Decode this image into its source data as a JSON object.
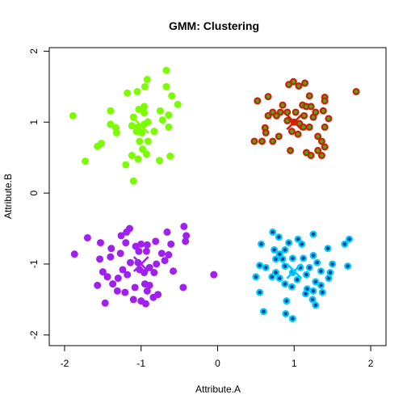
{
  "chart_data": {
    "type": "scatter",
    "title": "GMM: Clustering",
    "xlabel": "Attribute.A",
    "ylabel": "Attribute.B",
    "xlim": [
      -2.2,
      2.2
    ],
    "ylim": [
      -2.15,
      2.05
    ],
    "xticks": [
      "-2",
      "-1",
      "0",
      "1",
      "2"
    ],
    "xtick_values": [
      -2,
      -1,
      0,
      1,
      2
    ],
    "yticks": [
      "-2",
      "-1",
      "0",
      "1",
      "2"
    ],
    "ytick_values": [
      -2,
      -1,
      0,
      1,
      2
    ],
    "grid": false,
    "legend": "none",
    "series": [
      {
        "color": "#7CFC00",
        "inner_color": "#7CFC00",
        "center": [
          -1.0,
          0.95
        ],
        "points": [
          [
            -0.67,
            1.73
          ],
          [
            -0.92,
            1.6
          ],
          [
            -1.18,
            1.41
          ],
          [
            -0.67,
            1.5
          ],
          [
            -0.95,
            1.5
          ],
          [
            -1.05,
            1.43
          ],
          [
            -0.6,
            1.37
          ],
          [
            -0.52,
            1.25
          ],
          [
            -1.03,
            1.18
          ],
          [
            -0.96,
            1.22
          ],
          [
            -0.96,
            1.13
          ],
          [
            -1.1,
            1.07
          ],
          [
            -1.4,
            1.16
          ],
          [
            -0.75,
            1.16
          ],
          [
            -0.64,
            1.1
          ],
          [
            -0.72,
            1.03
          ],
          [
            -1.89,
            1.09
          ],
          [
            -1.33,
            0.92
          ],
          [
            -1.4,
            0.97
          ],
          [
            -1.32,
            0.85
          ],
          [
            -1.12,
            0.95
          ],
          [
            -1.04,
            0.93
          ],
          [
            -0.96,
            0.97
          ],
          [
            -0.91,
            1.0
          ],
          [
            -0.64,
            0.93
          ],
          [
            -0.83,
            0.87
          ],
          [
            -1.06,
            0.87
          ],
          [
            -0.99,
            0.85
          ],
          [
            -1.52,
            0.7
          ],
          [
            -1.57,
            0.66
          ],
          [
            -1.02,
            0.73
          ],
          [
            -0.91,
            0.73
          ],
          [
            -0.98,
            0.62
          ],
          [
            -0.93,
            0.55
          ],
          [
            -1.12,
            0.53
          ],
          [
            -1.04,
            0.48
          ],
          [
            -1.73,
            0.45
          ],
          [
            -0.76,
            0.46
          ],
          [
            -1.2,
            0.4
          ],
          [
            -0.62,
            0.52
          ],
          [
            -1.1,
            0.17
          ]
        ]
      },
      {
        "color": "#CC2200",
        "inner_color": "#44AA22",
        "center": [
          1.0,
          1.0
        ],
        "points": [
          [
            0.99,
            1.57
          ],
          [
            0.93,
            1.53
          ],
          [
            1.06,
            1.51
          ],
          [
            1.14,
            1.55
          ],
          [
            1.81,
            1.43
          ],
          [
            0.52,
            1.3
          ],
          [
            0.66,
            1.36
          ],
          [
            1.2,
            1.37
          ],
          [
            1.4,
            1.35
          ],
          [
            1.4,
            1.3
          ],
          [
            0.85,
            1.24
          ],
          [
            1.11,
            1.24
          ],
          [
            1.16,
            1.22
          ],
          [
            1.22,
            1.22
          ],
          [
            0.72,
            1.14
          ],
          [
            0.82,
            1.14
          ],
          [
            0.91,
            1.14
          ],
          [
            1.02,
            1.14
          ],
          [
            1.28,
            1.14
          ],
          [
            1.38,
            1.16
          ],
          [
            0.66,
            1.09
          ],
          [
            0.77,
            1.09
          ],
          [
            1.13,
            1.09
          ],
          [
            1.25,
            1.07
          ],
          [
            0.91,
            1.02
          ],
          [
            1.0,
            1.0
          ],
          [
            1.07,
            0.98
          ],
          [
            1.45,
            1.05
          ],
          [
            0.62,
            0.92
          ],
          [
            1.12,
            0.93
          ],
          [
            1.2,
            0.93
          ],
          [
            1.4,
            0.93
          ],
          [
            0.63,
            0.85
          ],
          [
            0.97,
            0.87
          ],
          [
            1.05,
            0.83
          ],
          [
            0.8,
            0.8
          ],
          [
            1.31,
            0.8
          ],
          [
            0.48,
            0.73
          ],
          [
            0.58,
            0.73
          ],
          [
            0.72,
            0.73
          ],
          [
            1.36,
            0.73
          ],
          [
            1.4,
            0.65
          ],
          [
            0.95,
            0.6
          ],
          [
            1.16,
            0.57
          ],
          [
            1.31,
            0.6
          ],
          [
            1.22,
            0.53
          ],
          [
            1.36,
            0.53
          ]
        ]
      },
      {
        "color": "#A020F0",
        "inner_color": "#A020F0",
        "center": [
          -1.0,
          -1.0
        ],
        "points": [
          [
            -0.44,
            -0.47
          ],
          [
            -1.15,
            -0.5
          ],
          [
            -1.19,
            -0.55
          ],
          [
            -0.66,
            -0.55
          ],
          [
            -1.7,
            -0.63
          ],
          [
            -1.26,
            -0.6
          ],
          [
            -0.41,
            -0.6
          ],
          [
            -1.53,
            -0.7
          ],
          [
            -1.2,
            -0.7
          ],
          [
            -0.42,
            -0.68
          ],
          [
            -1.39,
            -0.78
          ],
          [
            -0.81,
            -0.68
          ],
          [
            -1.0,
            -0.72
          ],
          [
            -0.92,
            -0.73
          ],
          [
            -1.07,
            -0.75
          ],
          [
            -0.61,
            -0.72
          ],
          [
            -1.87,
            -0.86
          ],
          [
            -1.4,
            -0.9
          ],
          [
            -1.27,
            -0.85
          ],
          [
            -1.03,
            -0.82
          ],
          [
            -0.93,
            -0.82
          ],
          [
            -0.73,
            -0.85
          ],
          [
            -0.64,
            -0.87
          ],
          [
            -1.54,
            -0.93
          ],
          [
            -1.14,
            -0.98
          ],
          [
            -1.04,
            -0.98
          ],
          [
            -0.69,
            -0.95
          ],
          [
            -0.8,
            -1.0
          ],
          [
            -1.24,
            -1.08
          ],
          [
            -1.02,
            -1.08
          ],
          [
            -0.89,
            -1.05
          ],
          [
            -1.5,
            -1.11
          ],
          [
            -1.18,
            -1.15
          ],
          [
            -0.96,
            -1.12
          ],
          [
            -0.83,
            -1.12
          ],
          [
            -0.58,
            -1.1
          ],
          [
            -1.44,
            -1.18
          ],
          [
            -1.3,
            -1.2
          ],
          [
            -1.57,
            -1.3
          ],
          [
            -1.37,
            -1.28
          ],
          [
            -0.95,
            -1.28
          ],
          [
            -0.89,
            -1.3
          ],
          [
            -1.08,
            -1.33
          ],
          [
            -0.45,
            -1.33
          ],
          [
            -1.31,
            -1.38
          ],
          [
            -1.21,
            -1.4
          ],
          [
            -0.92,
            -1.38
          ],
          [
            -0.84,
            -1.47
          ],
          [
            -1.0,
            -1.52
          ],
          [
            -1.47,
            -1.55
          ],
          [
            -0.94,
            -1.56
          ],
          [
            -1.1,
            -1.5
          ],
          [
            -0.78,
            -1.43
          ],
          [
            -0.05,
            -1.15
          ]
        ]
      },
      {
        "color": "#00CCFF",
        "inner_color": "#1E3C8C",
        "center": [
          1.0,
          -1.1
        ],
        "points": [
          [
            0.72,
            -0.55
          ],
          [
            0.8,
            -0.62
          ],
          [
            1.72,
            -0.65
          ],
          [
            1.66,
            -0.72
          ],
          [
            1.25,
            -0.58
          ],
          [
            1.05,
            -0.65
          ],
          [
            0.93,
            -0.7
          ],
          [
            1.1,
            -0.72
          ],
          [
            0.57,
            -0.72
          ],
          [
            0.74,
            -0.8
          ],
          [
            0.88,
            -0.8
          ],
          [
            1.44,
            -0.78
          ],
          [
            0.81,
            -0.86
          ],
          [
            0.76,
            -0.93
          ],
          [
            0.85,
            -0.93
          ],
          [
            0.98,
            -0.92
          ],
          [
            1.12,
            -0.92
          ],
          [
            1.25,
            -0.88
          ],
          [
            1.3,
            -0.98
          ],
          [
            1.5,
            -1.0
          ],
          [
            0.55,
            -1.02
          ],
          [
            0.88,
            -1.03
          ],
          [
            1.08,
            -1.05
          ],
          [
            1.2,
            -1.05
          ],
          [
            1.35,
            -1.1
          ],
          [
            1.7,
            -1.03
          ],
          [
            0.63,
            -1.05
          ],
          [
            0.76,
            -1.12
          ],
          [
            0.98,
            -1.12
          ],
          [
            1.16,
            -1.15
          ],
          [
            1.47,
            -1.12
          ],
          [
            1.45,
            -1.2
          ],
          [
            0.5,
            -1.18
          ],
          [
            0.71,
            -1.18
          ],
          [
            0.81,
            -1.2
          ],
          [
            1.04,
            -1.22
          ],
          [
            1.28,
            -1.25
          ],
          [
            1.35,
            -1.3
          ],
          [
            0.88,
            -1.28
          ],
          [
            0.97,
            -1.32
          ],
          [
            1.17,
            -1.35
          ],
          [
            0.55,
            -1.4
          ],
          [
            1.25,
            -1.38
          ],
          [
            1.37,
            -1.4
          ],
          [
            1.24,
            -1.5
          ],
          [
            1.28,
            -1.58
          ],
          [
            0.9,
            -1.52
          ],
          [
            0.6,
            -1.67
          ],
          [
            0.89,
            -1.7
          ],
          [
            0.98,
            -1.77
          ],
          [
            1.15,
            -1.42
          ]
        ]
      }
    ]
  }
}
